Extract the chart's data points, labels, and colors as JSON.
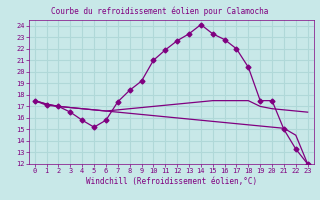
{
  "title": "Courbe du refroidissement éolien pour Calamocha",
  "xlabel": "Windchill (Refroidissement éolien,°C)",
  "background_color": "#c8e8e8",
  "grid_color": "#b0d8d8",
  "line_color": "#800080",
  "xlim": [
    -0.5,
    23.5
  ],
  "ylim": [
    12,
    24.5
  ],
  "xticks": [
    0,
    1,
    2,
    3,
    4,
    5,
    6,
    7,
    8,
    9,
    10,
    11,
    12,
    13,
    14,
    15,
    16,
    17,
    18,
    19,
    20,
    21,
    22,
    23
  ],
  "yticks": [
    12,
    13,
    14,
    15,
    16,
    17,
    18,
    19,
    20,
    21,
    22,
    23,
    24
  ],
  "line1_x": [
    0,
    1,
    2,
    3,
    4,
    5,
    6,
    7,
    8,
    9,
    10,
    11,
    12,
    13,
    14,
    15,
    16,
    17,
    18,
    19,
    20,
    21,
    22,
    23
  ],
  "line1_y": [
    17.5,
    17.1,
    17.0,
    16.5,
    15.8,
    15.2,
    15.8,
    17.4,
    18.4,
    19.2,
    21.0,
    21.9,
    22.7,
    23.3,
    24.1,
    23.3,
    22.8,
    22.0,
    20.4,
    17.5,
    17.5,
    15.0,
    13.3,
    12.0
  ],
  "line2_x": [
    0,
    1,
    2,
    3,
    4,
    5,
    6,
    7,
    8,
    9,
    10,
    11,
    12,
    13,
    14,
    15,
    16,
    17,
    18,
    19,
    20,
    21,
    22,
    23
  ],
  "line2_y": [
    17.5,
    17.2,
    17.0,
    16.9,
    16.8,
    16.7,
    16.6,
    16.7,
    16.8,
    16.9,
    17.0,
    17.1,
    17.2,
    17.3,
    17.4,
    17.5,
    17.5,
    17.5,
    17.5,
    17.0,
    16.8,
    16.7,
    16.6,
    16.5
  ],
  "line3_x": [
    0,
    1,
    2,
    3,
    4,
    5,
    6,
    7,
    8,
    9,
    10,
    11,
    12,
    13,
    14,
    15,
    16,
    17,
    18,
    19,
    20,
    21,
    22,
    23
  ],
  "line3_y": [
    17.5,
    17.2,
    17.0,
    16.9,
    16.8,
    16.7,
    16.6,
    16.5,
    16.4,
    16.3,
    16.2,
    16.1,
    16.0,
    15.9,
    15.8,
    15.7,
    15.6,
    15.5,
    15.4,
    15.3,
    15.2,
    15.1,
    14.5,
    12.0
  ],
  "marker": "D",
  "markersize": 2.5,
  "title_fontsize": 5.5,
  "xlabel_fontsize": 5.5,
  "tick_fontsize": 5
}
